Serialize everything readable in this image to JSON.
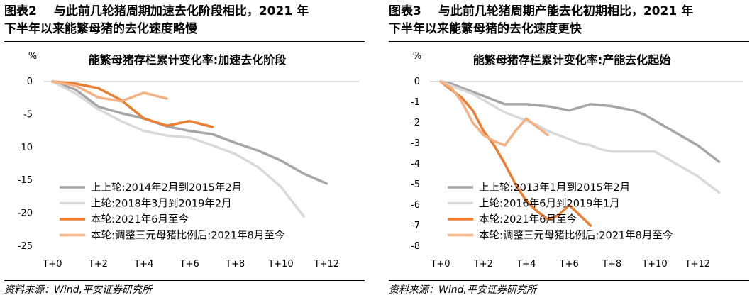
{
  "panels": [
    {
      "fig_label": "图表2",
      "fig_title_line1": "与此前几轮猪周期加速去化阶段相比，2021 年",
      "fig_title_line2": "下半年以来能繁母猪的去化速度略慢",
      "source": "资料来源：Wind,平安证券研究所"
    },
    {
      "fig_label": "图表3",
      "fig_title_line1": "与此前几轮猪周期产能去化初期相比，2021 年",
      "fig_title_line2": "下半年以来能繁母猪的去化速度更快",
      "source": "资料来源：Wind,平安证券研究所"
    }
  ],
  "colors": {
    "gray_dark": "#a6a6a6",
    "gray_light": "#d9d9d9",
    "orange": "#ed7d31",
    "orange_light": "#f4b183"
  },
  "chart_data": [
    {
      "type": "line",
      "title": "能繁母猪存栏累计变化率:加速去化阶段",
      "unit_label": "%",
      "x": [
        0,
        1,
        2,
        3,
        4,
        5,
        6,
        7,
        8,
        9,
        10,
        11,
        12
      ],
      "x_tick_labels": [
        "T+0",
        "T+2",
        "T+4",
        "T+6",
        "T+8",
        "T+10",
        "T+12"
      ],
      "x_tick_positions": [
        0,
        2,
        4,
        6,
        8,
        10,
        12
      ],
      "ylim": [
        -25,
        0
      ],
      "y_ticks": [
        0,
        -5,
        -10,
        -15,
        -20,
        -25
      ],
      "grid": false,
      "legend_position": "bottom-left",
      "series": [
        {
          "name": "上上轮:2014年2月到2015年2月",
          "color": "#a6a6a6",
          "x": [
            0,
            1,
            2,
            3,
            4,
            5,
            6,
            7,
            8,
            9,
            10,
            11,
            12
          ],
          "values": [
            0,
            -1.2,
            -3.8,
            -4.8,
            -5.6,
            -6.8,
            -7.5,
            -8.0,
            -9.3,
            -10.5,
            -12.0,
            -14.0,
            -15.5
          ]
        },
        {
          "name": "上轮:2018年3月到2019年2月",
          "color": "#d9d9d9",
          "x": [
            0,
            1,
            2,
            3,
            4,
            5,
            6,
            7,
            8,
            9,
            10,
            11
          ],
          "values": [
            0,
            -1.8,
            -4.2,
            -6.0,
            -7.5,
            -8.2,
            -8.5,
            -9.7,
            -11.0,
            -13.0,
            -16.0,
            -20.5
          ]
        },
        {
          "name": "本轮:2021年6月至今",
          "color": "#ed7d31",
          "x": [
            0,
            1,
            2,
            3,
            4,
            5,
            6,
            7
          ],
          "values": [
            0,
            -0.3,
            -1.0,
            -2.8,
            -5.6,
            -6.7,
            -6.0,
            -6.9
          ]
        },
        {
          "name": "本轮:调整三元母猪比例后:2021年8月至今",
          "color": "#f4b183",
          "x": [
            0,
            1,
            2,
            3,
            4,
            5
          ],
          "values": [
            0,
            -0.6,
            -2.4,
            -3.0,
            -1.7,
            -2.6
          ]
        }
      ]
    },
    {
      "type": "line",
      "title": "能繁母猪存栏累计变化率:产能去化起始",
      "unit_label": "%",
      "x": [
        0,
        1,
        2,
        3,
        4,
        5,
        6,
        7,
        8,
        9,
        10,
        11,
        12
      ],
      "x_tick_labels": [
        "T+0",
        "T+2",
        "T+4",
        "T+6",
        "T+8",
        "T+10",
        "T+12"
      ],
      "x_tick_positions": [
        0,
        2,
        4,
        6,
        8,
        10,
        12
      ],
      "ylim": [
        -8,
        0
      ],
      "y_ticks": [
        0,
        -1,
        -2,
        -3,
        -4,
        -5,
        -6,
        -7,
        -8
      ],
      "grid": false,
      "legend_position": "bottom-left",
      "series": [
        {
          "name": "上上轮:2013年1月到2015年2月",
          "color": "#a6a6a6",
          "x": [
            0,
            0.5,
            1,
            1.5,
            2,
            2.5,
            3,
            3.5,
            4,
            4.5,
            5,
            5.5,
            6,
            6.5,
            7,
            7.5,
            8,
            8.5,
            9,
            9.5,
            10,
            10.5,
            11,
            11.5,
            12,
            12.5,
            13
          ],
          "values": [
            0,
            -0.1,
            -0.3,
            -0.5,
            -0.7,
            -0.9,
            -1.1,
            -1.1,
            -1.1,
            -1.15,
            -1.2,
            -1.3,
            -1.4,
            -1.25,
            -1.1,
            -1.15,
            -1.2,
            -1.3,
            -1.4,
            -1.6,
            -1.9,
            -2.2,
            -2.5,
            -2.8,
            -3.1,
            -3.5,
            -3.9
          ]
        },
        {
          "name": "上轮:2016年6月到2019年1月",
          "color": "#d9d9d9",
          "x": [
            0,
            0.5,
            1,
            1.5,
            2,
            2.5,
            3,
            3.5,
            4,
            4.5,
            5,
            5.5,
            6,
            6.5,
            7,
            7.5,
            8,
            8.5,
            9,
            9.5,
            10,
            10.5,
            11,
            11.5,
            12,
            12.5,
            13
          ],
          "values": [
            0,
            -0.2,
            -0.4,
            -0.6,
            -0.9,
            -1.2,
            -1.5,
            -1.7,
            -1.9,
            -2.1,
            -2.4,
            -2.6,
            -2.8,
            -3.0,
            -3.1,
            -3.3,
            -3.4,
            -3.4,
            -3.4,
            -3.4,
            -3.4,
            -3.7,
            -4.0,
            -4.3,
            -4.6,
            -5.0,
            -5.4
          ]
        },
        {
          "name": "本轮:2021年6月至今",
          "color": "#ed7d31",
          "x": [
            0,
            0.5,
            1,
            1.5,
            2,
            2.5,
            3,
            3.5,
            4,
            4.5,
            5,
            5.5,
            6,
            6.5,
            7
          ],
          "values": [
            0,
            -0.4,
            -0.8,
            -1.4,
            -2.4,
            -3.1,
            -4.0,
            -5.0,
            -5.8,
            -6.3,
            -6.7,
            -6.5,
            -6.0,
            -6.5,
            -7.0
          ]
        },
        {
          "name": "本轮:调整三元母猪比例后:2021年8月至今",
          "color": "#f4b183",
          "x": [
            0,
            0.5,
            1,
            1.5,
            2,
            2.5,
            3,
            3.5,
            4,
            4.5,
            5
          ],
          "values": [
            0,
            -0.3,
            -1.0,
            -2.0,
            -2.6,
            -2.9,
            -3.1,
            -2.4,
            -1.8,
            -2.2,
            -2.6
          ]
        }
      ]
    }
  ]
}
